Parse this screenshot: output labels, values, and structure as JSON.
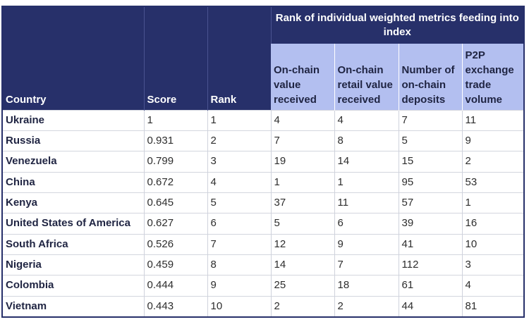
{
  "table": {
    "headers": {
      "country": "Country",
      "score": "Score",
      "rank": "Rank",
      "group": "Rank of individual weighted metrics feeding into index",
      "sub": [
        "On-chain value received",
        "On-chain retail value received",
        "Number of on-chain deposits",
        "P2P exchange trade volume"
      ]
    },
    "rows": [
      [
        "Ukraine",
        "1",
        "1",
        "4",
        "4",
        "7",
        "11"
      ],
      [
        "Russia",
        "0.931",
        "2",
        "7",
        "8",
        "5",
        "9"
      ],
      [
        "Venezuela",
        "0.799",
        "3",
        "19",
        "14",
        "15",
        "2"
      ],
      [
        "China",
        "0.672",
        "4",
        "1",
        "1",
        "95",
        "53"
      ],
      [
        "Kenya",
        "0.645",
        "5",
        "37",
        "11",
        "57",
        "1"
      ],
      [
        "United States of America",
        "0.627",
        "6",
        "5",
        "6",
        "39",
        "16"
      ],
      [
        "South Africa",
        "0.526",
        "7",
        "12",
        "9",
        "41",
        "10"
      ],
      [
        "Nigeria",
        "0.459",
        "8",
        "14",
        "7",
        "112",
        "3"
      ],
      [
        "Colombia",
        "0.444",
        "9",
        "25",
        "18",
        "61",
        "4"
      ],
      [
        "Vietnam",
        "0.443",
        "10",
        "2",
        "2",
        "44",
        "81"
      ]
    ]
  },
  "colors": {
    "header_dark": "#27306a",
    "header_light": "#b3bff0"
  }
}
